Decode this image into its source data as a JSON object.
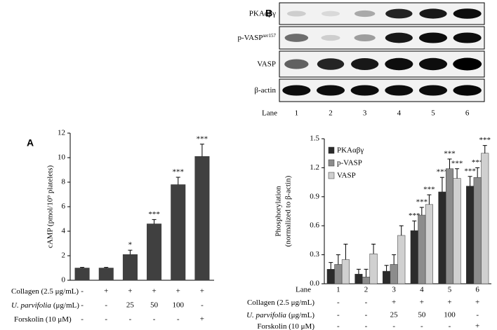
{
  "blot": {
    "panel": "B",
    "rows": [
      [
        "PKAαβγ"
      ],
      [
        "p-VASP",
        "ser157"
      ],
      [
        "VASP"
      ],
      [
        "β-actin"
      ]
    ],
    "lane_label": "Lane",
    "lanes": [
      "1",
      "2",
      "3",
      "4",
      "5",
      "6"
    ]
  },
  "chart_data": [
    {
      "type": "bar",
      "panel": "A",
      "y_label": [
        "cAMP (pmol/10⁹ platelets)"
      ],
      "categories": [
        null,
        null,
        null,
        null,
        null,
        null
      ],
      "values": [
        1.0,
        1.0,
        2.1,
        4.6,
        7.8,
        10.1
      ],
      "errors": [
        0.05,
        0.05,
        0.35,
        0.35,
        0.6,
        1.0
      ],
      "annotations": [
        null,
        null,
        "*",
        "***",
        "***",
        "***"
      ],
      "color": "#404040",
      "ylim": [
        0,
        12
      ],
      "yticks": [
        0,
        2,
        4,
        6,
        8,
        10,
        12
      ],
      "treatments": [
        {
          "label": [
            "Collagen (2.5 μg/mL)"
          ],
          "values": [
            "-",
            "+",
            "+",
            "+",
            "+",
            "+"
          ]
        },
        {
          "label": [
            "U. parvifolia",
            "(μg/mL)"
          ],
          "values": [
            "-",
            "-",
            "25",
            "50",
            "100",
            "-"
          ]
        },
        {
          "label": [
            "Forskolin (10 μM)"
          ],
          "values": [
            "-",
            "-",
            "-",
            "-",
            "-",
            "+"
          ]
        }
      ]
    },
    {
      "type": "bar",
      "x_label": "Lane",
      "y_label": [
        "Phosphorylation",
        "(normalized to β-actin)"
      ],
      "categories": [
        "1",
        "2",
        "3",
        "4",
        "5",
        "6"
      ],
      "series": [
        {
          "name": "PKAαβγ",
          "color": "#2b2b2b",
          "values": [
            0.15,
            0.1,
            0.13,
            0.55,
            0.95,
            1.01
          ],
          "errors": [
            0.07,
            0.05,
            0.06,
            0.1,
            0.15,
            0.1
          ],
          "annotations": [
            null,
            null,
            null,
            "***",
            "***",
            "***"
          ]
        },
        {
          "name": "p-VASP",
          "color": "#8c8c8c",
          "values": [
            0.2,
            0.07,
            0.2,
            0.71,
            1.19,
            1.1
          ],
          "errors": [
            0.1,
            0.08,
            0.1,
            0.08,
            0.1,
            0.1
          ],
          "annotations": [
            null,
            null,
            null,
            "***",
            "***",
            "***"
          ]
        },
        {
          "name": "VASP",
          "color": "#d0d0d0",
          "values": [
            0.25,
            0.31,
            0.5,
            0.82,
            1.09,
            1.35
          ],
          "errors": [
            0.16,
            0.1,
            0.1,
            0.1,
            0.1,
            0.08
          ],
          "annotations": [
            null,
            null,
            null,
            "***",
            "***",
            "***"
          ]
        }
      ],
      "ylim": [
        0,
        1.5
      ],
      "yticks": [
        {
          "value": 0,
          "label": "0.0"
        },
        0.3,
        0.6,
        0.9,
        1.2,
        1.5
      ],
      "treatments": [
        {
          "label": [
            "Collagen (2.5 μg/mL)"
          ],
          "values": [
            "-",
            "-",
            "+",
            "+",
            "+",
            "+"
          ]
        },
        {
          "label": [
            "U. parvifolia",
            "(μg/mL)"
          ],
          "values": [
            "-",
            "-",
            "25",
            "50",
            "100",
            "-"
          ]
        },
        {
          "label": [
            "Forskolin (10 μM)"
          ],
          "values": [
            "-",
            "-",
            "-",
            "-",
            "-",
            "+"
          ]
        }
      ]
    }
  ]
}
